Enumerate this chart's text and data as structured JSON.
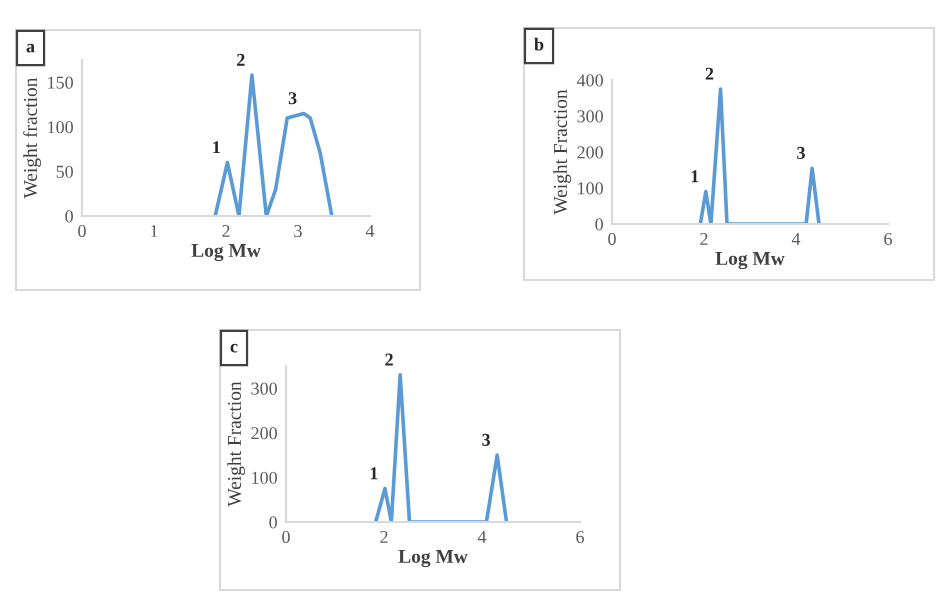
{
  "chart_data": [
    {
      "type": "line",
      "xlabel": "Log Mw",
      "ylabel": "Weight fraction",
      "xlim": [
        0,
        4
      ],
      "xticks": [
        0,
        1,
        2,
        3,
        4
      ],
      "ylim": [
        0,
        175
      ],
      "yticks": [
        0,
        50,
        100,
        150
      ],
      "grid": false,
      "series": [
        {
          "color": "#5b9bd5",
          "x": [
            1.85,
            2.02,
            2.18,
            2.36,
            2.56,
            2.69,
            2.85,
            2.94,
            3.08,
            3.17,
            3.31,
            3.47
          ],
          "values": [
            0,
            60,
            0,
            158,
            0,
            30,
            110,
            112,
            115,
            110,
            70,
            0
          ]
        }
      ],
      "annotations": [
        "a",
        {
          "text": "1",
          "x": 2.02,
          "y": 60
        },
        {
          "text": "2",
          "x": 2.36,
          "y": 158
        },
        {
          "text": "3",
          "x": 3.08,
          "y": 115
        }
      ]
    },
    {
      "type": "line",
      "xlabel": "Log Mw",
      "ylabel": "Weight Fraction",
      "xlim": [
        0,
        6
      ],
      "xticks": [
        0,
        2,
        4,
        6
      ],
      "ylim": [
        0,
        400
      ],
      "yticks": [
        0,
        100,
        200,
        300,
        400
      ],
      "grid": false,
      "series": [
        {
          "color": "#5b9bd5",
          "x": [
            1.92,
            2.04,
            2.15,
            2.36,
            2.5,
            4.22,
            4.35,
            4.5
          ],
          "values": [
            0,
            90,
            0,
            375,
            0,
            0,
            155,
            0
          ]
        }
      ],
      "annotations": [
        "b",
        {
          "text": "1",
          "x": 2.04,
          "y": 90
        },
        {
          "text": "2",
          "x": 2.36,
          "y": 375
        },
        {
          "text": "3",
          "x": 4.35,
          "y": 155
        }
      ]
    },
    {
      "type": "line",
      "xlabel": "Log Mw",
      "ylabel": "Weight Fraction",
      "xlim": [
        0,
        6
      ],
      "xticks": [
        0,
        2,
        4,
        6
      ],
      "ylim": [
        0,
        350
      ],
      "yticks": [
        0,
        100,
        200,
        300
      ],
      "grid": false,
      "series": [
        {
          "color": "#5b9bd5",
          "x": [
            1.83,
            2.02,
            2.15,
            2.33,
            2.52,
            4.09,
            4.31,
            4.5
          ],
          "values": [
            0,
            75,
            0,
            330,
            0,
            0,
            150,
            0
          ]
        }
      ],
      "annotations": [
        "c",
        {
          "text": "1",
          "x": 2.02,
          "y": 75
        },
        {
          "text": "2",
          "x": 2.33,
          "y": 330
        },
        {
          "text": "3",
          "x": 4.31,
          "y": 150
        }
      ]
    }
  ]
}
